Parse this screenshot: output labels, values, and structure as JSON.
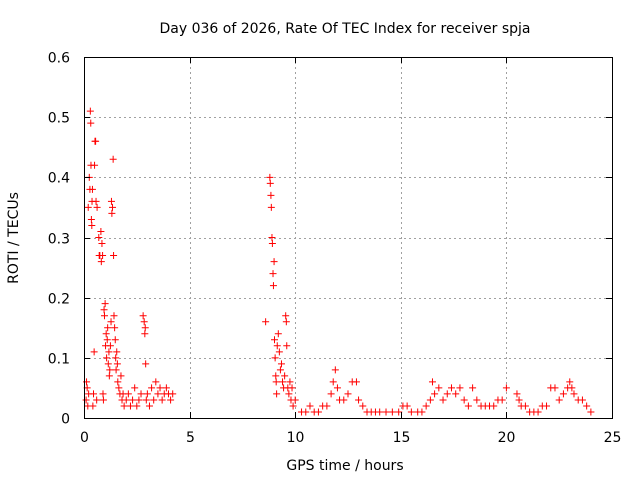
{
  "chart_data": {
    "type": "scatter",
    "title": "Day 036 of 2026, Rate Of TEC Index for receiver spja",
    "xlabel": "GPS time / hours",
    "ylabel": "ROTI / TECUs",
    "xlim": [
      0,
      25
    ],
    "ylim": [
      0,
      0.6
    ],
    "xticks": [
      0,
      5,
      10,
      15,
      20,
      25
    ],
    "xtick_labels": [
      "0",
      "5",
      "10",
      "15",
      "20",
      "25"
    ],
    "yticks": [
      0,
      0.1,
      0.2,
      0.3,
      0.4,
      0.5,
      0.6
    ],
    "ytick_labels": [
      "0",
      "0.1",
      "0.2",
      "0.3",
      "0.4",
      "0.5",
      "0.6"
    ],
    "grid": true,
    "marker": "+",
    "marker_color": "#ff0000",
    "series": [
      {
        "name": "ROTI",
        "points": [
          [
            0.1,
            0.03
          ],
          [
            0.12,
            0.06
          ],
          [
            0.15,
            0.05
          ],
          [
            0.18,
            0.02
          ],
          [
            0.2,
            0.35
          ],
          [
            0.22,
            0.04
          ],
          [
            0.25,
            0.4
          ],
          [
            0.28,
            0.38
          ],
          [
            0.3,
            0.51
          ],
          [
            0.32,
            0.49
          ],
          [
            0.33,
            0.42
          ],
          [
            0.35,
            0.33
          ],
          [
            0.37,
            0.32
          ],
          [
            0.38,
            0.36
          ],
          [
            0.4,
            0.38
          ],
          [
            0.42,
            0.02
          ],
          [
            0.45,
            0.04
          ],
          [
            0.48,
            0.11
          ],
          [
            0.5,
            0.42
          ],
          [
            0.52,
            0.46
          ],
          [
            0.55,
            0.46
          ],
          [
            0.57,
            0.36
          ],
          [
            0.6,
            0.03
          ],
          [
            0.62,
            0.35
          ],
          [
            0.7,
            0.3
          ],
          [
            0.72,
            0.27
          ],
          [
            0.75,
            0.27
          ],
          [
            0.8,
            0.31
          ],
          [
            0.82,
            0.26
          ],
          [
            0.85,
            0.29
          ],
          [
            0.88,
            0.27
          ],
          [
            0.9,
            0.04
          ],
          [
            0.92,
            0.03
          ],
          [
            0.95,
            0.18
          ],
          [
            0.97,
            0.17
          ],
          [
            1.0,
            0.19
          ],
          [
            1.02,
            0.12
          ],
          [
            1.05,
            0.14
          ],
          [
            1.07,
            0.1
          ],
          [
            1.1,
            0.13
          ],
          [
            1.12,
            0.15
          ],
          [
            1.15,
            0.09
          ],
          [
            1.18,
            0.11
          ],
          [
            1.2,
            0.07
          ],
          [
            1.22,
            0.08
          ],
          [
            1.25,
            0.12
          ],
          [
            1.28,
            0.16
          ],
          [
            1.3,
            0.36
          ],
          [
            1.32,
            0.34
          ],
          [
            1.35,
            0.35
          ],
          [
            1.38,
            0.43
          ],
          [
            1.4,
            0.27
          ],
          [
            1.42,
            0.17
          ],
          [
            1.45,
            0.15
          ],
          [
            1.48,
            0.13
          ],
          [
            1.5,
            0.1
          ],
          [
            1.52,
            0.08
          ],
          [
            1.55,
            0.11
          ],
          [
            1.58,
            0.09
          ],
          [
            1.6,
            0.06
          ],
          [
            1.65,
            0.05
          ],
          [
            1.7,
            0.04
          ],
          [
            1.75,
            0.07
          ],
          [
            1.8,
            0.03
          ],
          [
            1.85,
            0.04
          ],
          [
            1.9,
            0.02
          ],
          [
            2.0,
            0.03
          ],
          [
            2.1,
            0.04
          ],
          [
            2.2,
            0.02
          ],
          [
            2.3,
            0.03
          ],
          [
            2.4,
            0.05
          ],
          [
            2.5,
            0.02
          ],
          [
            2.6,
            0.03
          ],
          [
            2.7,
            0.04
          ],
          [
            2.8,
            0.17
          ],
          [
            2.85,
            0.16
          ],
          [
            2.88,
            0.14
          ],
          [
            2.9,
            0.15
          ],
          [
            2.92,
            0.09
          ],
          [
            2.95,
            0.03
          ],
          [
            3.0,
            0.04
          ],
          [
            3.1,
            0.02
          ],
          [
            3.2,
            0.05
          ],
          [
            3.3,
            0.03
          ],
          [
            3.4,
            0.06
          ],
          [
            3.5,
            0.04
          ],
          [
            3.6,
            0.05
          ],
          [
            3.7,
            0.03
          ],
          [
            3.8,
            0.04
          ],
          [
            3.9,
            0.05
          ],
          [
            4.0,
            0.04
          ],
          [
            4.1,
            0.03
          ],
          [
            4.2,
            0.04
          ],
          [
            8.6,
            0.16
          ],
          [
            8.8,
            0.4
          ],
          [
            8.82,
            0.39
          ],
          [
            8.85,
            0.37
          ],
          [
            8.87,
            0.35
          ],
          [
            8.9,
            0.3
          ],
          [
            8.92,
            0.29
          ],
          [
            8.95,
            0.24
          ],
          [
            8.97,
            0.22
          ],
          [
            9.0,
            0.26
          ],
          [
            9.02,
            0.13
          ],
          [
            9.05,
            0.1
          ],
          [
            9.08,
            0.07
          ],
          [
            9.1,
            0.06
          ],
          [
            9.12,
            0.04
          ],
          [
            9.15,
            0.12
          ],
          [
            9.2,
            0.14
          ],
          [
            9.25,
            0.11
          ],
          [
            9.3,
            0.08
          ],
          [
            9.35,
            0.09
          ],
          [
            9.4,
            0.06
          ],
          [
            9.45,
            0.05
          ],
          [
            9.5,
            0.07
          ],
          [
            9.55,
            0.17
          ],
          [
            9.58,
            0.16
          ],
          [
            9.6,
            0.12
          ],
          [
            9.65,
            0.05
          ],
          [
            9.7,
            0.04
          ],
          [
            9.75,
            0.06
          ],
          [
            9.8,
            0.03
          ],
          [
            9.85,
            0.05
          ],
          [
            9.9,
            0.02
          ],
          [
            10.0,
            0.03
          ],
          [
            10.3,
            0.01
          ],
          [
            10.5,
            0.01
          ],
          [
            10.7,
            0.02
          ],
          [
            10.9,
            0.01
          ],
          [
            11.1,
            0.01
          ],
          [
            11.3,
            0.02
          ],
          [
            11.5,
            0.02
          ],
          [
            11.7,
            0.04
          ],
          [
            11.8,
            0.06
          ],
          [
            11.9,
            0.08
          ],
          [
            12.0,
            0.05
          ],
          [
            12.1,
            0.03
          ],
          [
            12.3,
            0.03
          ],
          [
            12.5,
            0.04
          ],
          [
            12.7,
            0.06
          ],
          [
            12.9,
            0.06
          ],
          [
            13.0,
            0.03
          ],
          [
            13.2,
            0.02
          ],
          [
            13.4,
            0.01
          ],
          [
            13.6,
            0.01
          ],
          [
            13.8,
            0.01
          ],
          [
            14.0,
            0.01
          ],
          [
            14.3,
            0.01
          ],
          [
            14.6,
            0.01
          ],
          [
            14.9,
            0.01
          ],
          [
            15.1,
            0.02
          ],
          [
            15.3,
            0.02
          ],
          [
            15.5,
            0.01
          ],
          [
            15.8,
            0.01
          ],
          [
            16.0,
            0.01
          ],
          [
            16.2,
            0.02
          ],
          [
            16.4,
            0.03
          ],
          [
            16.5,
            0.06
          ],
          [
            16.6,
            0.04
          ],
          [
            16.8,
            0.05
          ],
          [
            17.0,
            0.03
          ],
          [
            17.2,
            0.04
          ],
          [
            17.4,
            0.05
          ],
          [
            17.6,
            0.04
          ],
          [
            17.8,
            0.05
          ],
          [
            18.0,
            0.03
          ],
          [
            18.2,
            0.02
          ],
          [
            18.4,
            0.05
          ],
          [
            18.6,
            0.03
          ],
          [
            18.8,
            0.02
          ],
          [
            19.0,
            0.02
          ],
          [
            19.2,
            0.02
          ],
          [
            19.4,
            0.02
          ],
          [
            19.6,
            0.03
          ],
          [
            19.8,
            0.03
          ],
          [
            20.0,
            0.05
          ],
          [
            20.5,
            0.04
          ],
          [
            20.6,
            0.03
          ],
          [
            20.7,
            0.02
          ],
          [
            20.9,
            0.02
          ],
          [
            21.1,
            0.01
          ],
          [
            21.3,
            0.01
          ],
          [
            21.5,
            0.01
          ],
          [
            21.7,
            0.02
          ],
          [
            21.9,
            0.02
          ],
          [
            22.1,
            0.05
          ],
          [
            22.3,
            0.05
          ],
          [
            22.5,
            0.03
          ],
          [
            22.7,
            0.04
          ],
          [
            22.9,
            0.05
          ],
          [
            23.0,
            0.06
          ],
          [
            23.1,
            0.05
          ],
          [
            23.2,
            0.04
          ],
          [
            23.4,
            0.03
          ],
          [
            23.6,
            0.03
          ],
          [
            23.8,
            0.02
          ],
          [
            24.0,
            0.01
          ]
        ]
      }
    ]
  }
}
